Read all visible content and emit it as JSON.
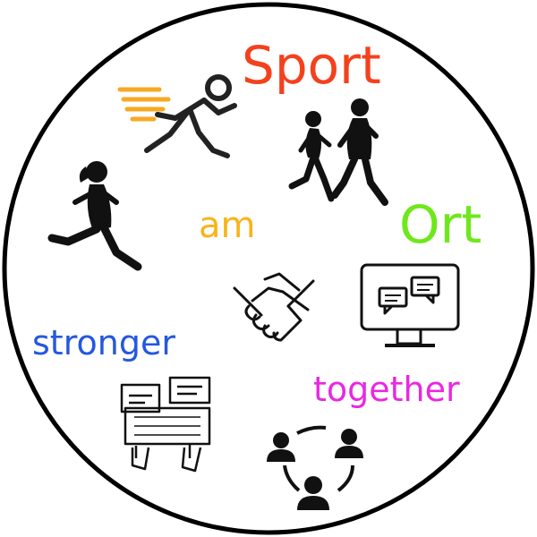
{
  "words": {
    "sport": "Sport",
    "am": "am",
    "ort": "Ort",
    "stronger": "stronger",
    "together": "together"
  },
  "colors": {
    "sport": "#f4411d",
    "am": "#f9b31a",
    "ort": "#6ee81c",
    "stronger": "#2558e0",
    "together": "#e928e2",
    "speed_lines": "#f7a823",
    "ring": "#000000"
  },
  "icons": [
    "sprinter-icon",
    "running-couple-icon",
    "running-woman-icon",
    "handshake-icon",
    "monitor-chat-icon",
    "keyboard-chat-icon",
    "community-group-icon"
  ]
}
